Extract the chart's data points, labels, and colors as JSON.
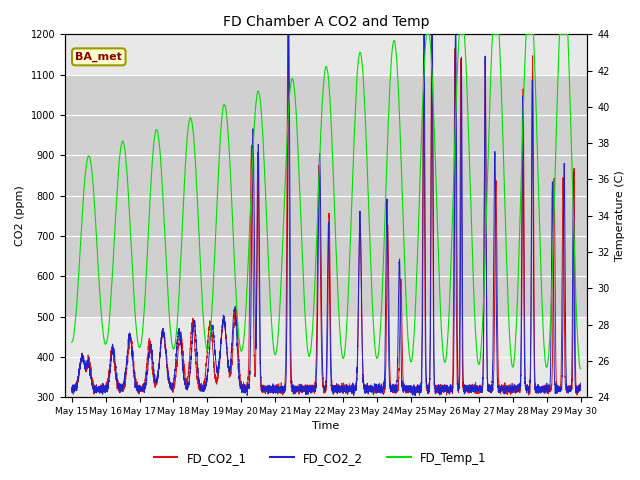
{
  "title": "FD Chamber A CO2 and Temp",
  "xlabel": "Time",
  "ylabel_left": "CO2 (ppm)",
  "ylabel_right": "Temperature (C)",
  "ylim_left": [
    300,
    1200
  ],
  "ylim_right": [
    24,
    44
  ],
  "annotation_text": "BA_met",
  "annotation_fontcolor": "#8B0000",
  "background_color": "#ffffff",
  "plot_bg_color": "#e8e8e8",
  "band_color": "#d0d0d0",
  "grid_color": "#ffffff",
  "line_colors": {
    "FD_CO2_1": "#dd1111",
    "FD_CO2_2": "#2222cc",
    "FD_Temp_1": "#00dd00"
  },
  "xtick_labels": [
    "May 15",
    "May 16",
    "May 17",
    "May 18",
    "May 19",
    "May 20",
    "May 21",
    "May 22",
    "May 23",
    "May 24",
    "May 25",
    "May 26",
    "May 27",
    "May 28",
    "May 29",
    "May 30"
  ],
  "yticks_left": [
    300,
    400,
    500,
    600,
    700,
    800,
    900,
    1000,
    1100,
    1200
  ],
  "yticks_right": [
    24,
    26,
    28,
    30,
    32,
    34,
    36,
    38,
    40,
    42,
    44
  ],
  "num_days": 16,
  "seed": 42
}
